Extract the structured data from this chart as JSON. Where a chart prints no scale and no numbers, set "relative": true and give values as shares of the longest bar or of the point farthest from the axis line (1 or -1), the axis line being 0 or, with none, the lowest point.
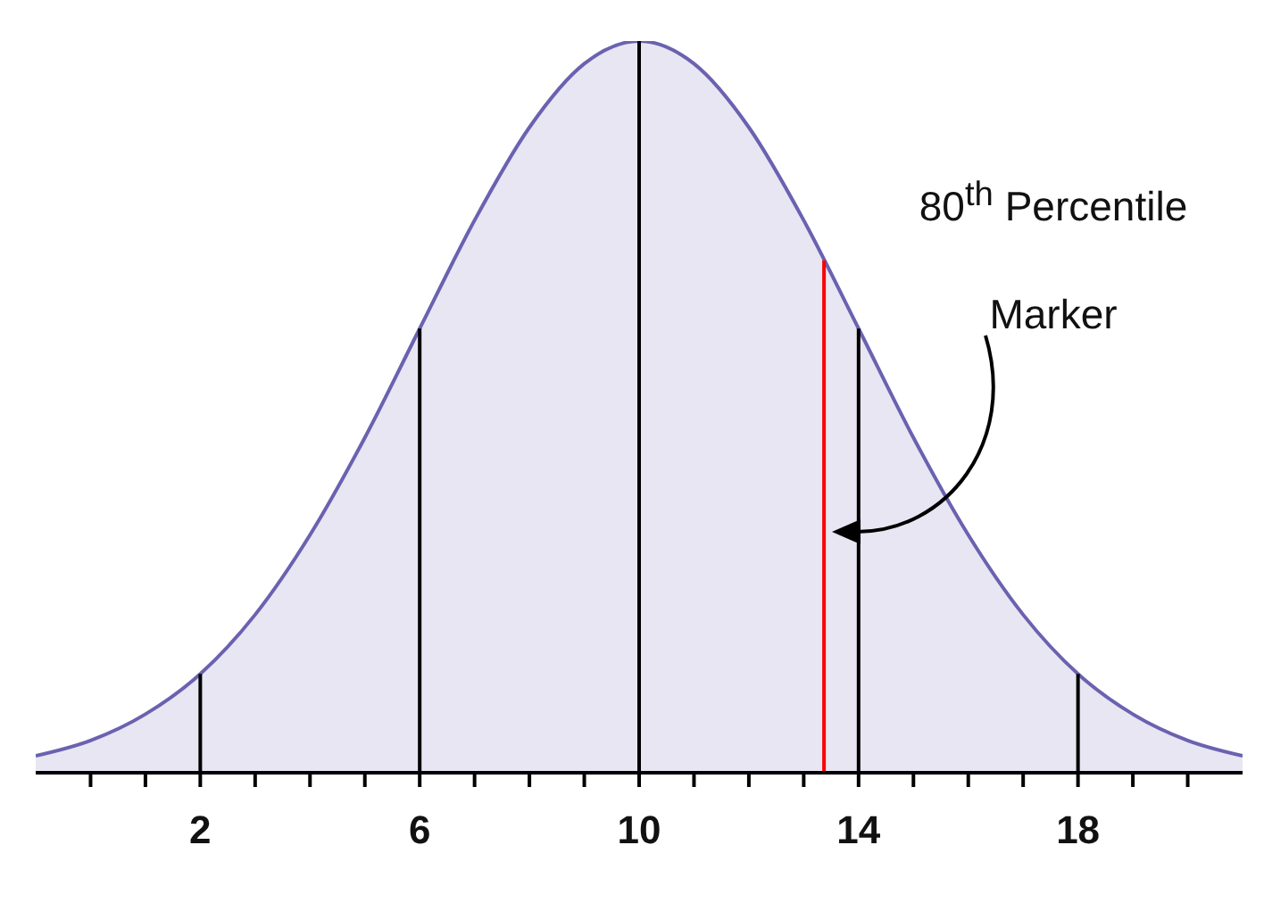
{
  "chart_data": {
    "type": "area",
    "relative": true,
    "x": [
      -1,
      0,
      1,
      2,
      3,
      4,
      5,
      6,
      7,
      8,
      9,
      10,
      11,
      12,
      13,
      14,
      15,
      16,
      17,
      18,
      19,
      20,
      21
    ],
    "series": [
      {
        "color": "#6a62b0",
        "values": [
          0.023,
          0.044,
          0.08,
          0.135,
          0.216,
          0.325,
          0.458,
          0.607,
          0.755,
          0.882,
          0.969,
          1,
          0.969,
          0.882,
          0.755,
          0.607,
          0.458,
          0.325,
          0.216,
          0.135,
          0.08,
          0.044,
          0.023
        ]
      }
    ],
    "xlim": [
      -1,
      21
    ],
    "xticks": [
      {
        "value": 0,
        "label": null
      },
      {
        "value": 1,
        "label": null
      },
      2,
      {
        "value": 3,
        "label": null
      },
      {
        "value": 4,
        "label": null
      },
      {
        "value": 5,
        "label": null
      },
      6,
      {
        "value": 7,
        "label": null
      },
      {
        "value": 8,
        "label": null
      },
      {
        "value": 9,
        "label": null
      },
      10,
      {
        "value": 11,
        "label": null
      },
      {
        "value": 12,
        "label": null
      },
      {
        "value": 13,
        "label": null
      },
      14,
      {
        "value": 15,
        "label": null
      },
      {
        "value": 16,
        "label": null
      },
      {
        "value": 17,
        "label": null
      },
      18,
      {
        "value": 19,
        "label": null
      },
      {
        "value": 20,
        "label": null
      }
    ],
    "ref_lines": [
      {
        "axis": "x",
        "value": 2,
        "color": "#000000"
      },
      {
        "axis": "x",
        "value": 6,
        "color": "#000000"
      },
      {
        "axis": "x",
        "value": 10,
        "color": "#000000"
      },
      {
        "axis": "x",
        "value": 14,
        "color": "#000000"
      },
      {
        "axis": "x",
        "value": 18,
        "color": "#000000"
      },
      {
        "axis": "x",
        "value": 13.37,
        "color": "#ff0000"
      }
    ],
    "annotations": [
      "80$^{th}$ Percentile Marker"
    ],
    "grid": false,
    "legend": false
  }
}
